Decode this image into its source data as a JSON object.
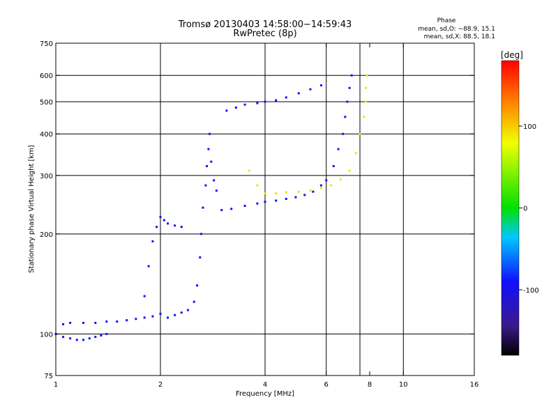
{
  "chart_data": {
    "type": "scatter",
    "title": "Tromsø 20130403 14:58:00−14:59:43",
    "subtitle": "RwPretec (8p)",
    "xlabel": "Frequency [MHz]",
    "ylabel": "Stationary phase Virtual Height [km]",
    "x_scale": "log",
    "y_scale": "log",
    "xlim": [
      1,
      16
    ],
    "ylim": [
      75,
      750
    ],
    "x_ticks": [
      1,
      2,
      4,
      6,
      8,
      10,
      16
    ],
    "x_tick_labels": [
      "1",
      "2",
      "4",
      "6",
      "8",
      "10",
      "16"
    ],
    "y_ticks": [
      75,
      100,
      200,
      300,
      400,
      500,
      600,
      750
    ],
    "y_tick_labels": [
      "75",
      "100",
      "200",
      "300",
      "400",
      "500",
      "600",
      "750"
    ],
    "x_grid": [
      2,
      4,
      6,
      7.5,
      10
    ],
    "y_grid": [
      100,
      200,
      300,
      400,
      500,
      600
    ],
    "grid": true,
    "phase_info": {
      "title": "Phase",
      "line_o": "mean, sd,O: −88.9, 15.1",
      "line_x": "mean, sd,X:  88.5, 18.1"
    },
    "colorbar": {
      "label": "[deg]",
      "range": [
        -180,
        180
      ],
      "ticks": [
        100,
        0,
        -100
      ],
      "tick_labels": [
        "100",
        "0",
        "-100"
      ]
    },
    "series": [
      {
        "name": "",
        "phase": -90,
        "points": [
          [
            1.0,
            100
          ],
          [
            1.05,
            98
          ],
          [
            1.1,
            97
          ],
          [
            1.15,
            96
          ],
          [
            1.2,
            96
          ],
          [
            1.25,
            97
          ],
          [
            1.3,
            98
          ],
          [
            1.35,
            99
          ],
          [
            1.4,
            100
          ],
          [
            1.05,
            107
          ],
          [
            1.1,
            108
          ],
          [
            1.2,
            108
          ],
          [
            1.3,
            108
          ],
          [
            1.4,
            109
          ],
          [
            1.5,
            109
          ],
          [
            1.6,
            110
          ],
          [
            1.7,
            111
          ],
          [
            1.8,
            112
          ],
          [
            1.9,
            113
          ],
          [
            2.0,
            115
          ],
          [
            2.1,
            112
          ],
          [
            2.2,
            114
          ],
          [
            2.3,
            116
          ],
          [
            2.4,
            118
          ],
          [
            2.5,
            125
          ],
          [
            2.55,
            140
          ],
          [
            2.6,
            170
          ],
          [
            2.62,
            200
          ],
          [
            2.65,
            240
          ],
          [
            2.7,
            280
          ],
          [
            2.72,
            320
          ],
          [
            2.75,
            360
          ],
          [
            2.77,
            400
          ],
          [
            2.8,
            330
          ],
          [
            2.85,
            290
          ],
          [
            2.9,
            270
          ],
          [
            1.8,
            130
          ],
          [
            1.85,
            160
          ],
          [
            1.9,
            190
          ],
          [
            1.95,
            210
          ],
          [
            2.0,
            225
          ],
          [
            2.05,
            220
          ],
          [
            2.1,
            215
          ],
          [
            2.2,
            212
          ],
          [
            2.3,
            210
          ],
          [
            3.0,
            236
          ],
          [
            3.2,
            238
          ],
          [
            3.5,
            243
          ],
          [
            3.8,
            247
          ],
          [
            4.0,
            250
          ],
          [
            4.3,
            252
          ],
          [
            4.6,
            255
          ],
          [
            4.9,
            258
          ],
          [
            5.2,
            262
          ],
          [
            5.5,
            268
          ],
          [
            5.8,
            280
          ],
          [
            6.0,
            290
          ],
          [
            6.3,
            320
          ],
          [
            6.5,
            360
          ],
          [
            6.7,
            400
          ],
          [
            6.8,
            450
          ],
          [
            6.9,
            500
          ],
          [
            7.0,
            550
          ],
          [
            7.1,
            600
          ],
          [
            3.1,
            470
          ],
          [
            3.3,
            480
          ],
          [
            3.5,
            490
          ],
          [
            3.8,
            495
          ],
          [
            4.0,
            500
          ],
          [
            4.3,
            505
          ],
          [
            4.6,
            515
          ],
          [
            5.0,
            530
          ],
          [
            5.4,
            545
          ],
          [
            5.8,
            560
          ]
        ]
      },
      {
        "name": "",
        "phase": 90,
        "points": [
          [
            3.6,
            310
          ],
          [
            3.8,
            280
          ],
          [
            4.0,
            265
          ],
          [
            4.3,
            265
          ],
          [
            4.6,
            267
          ],
          [
            5.0,
            268
          ],
          [
            5.4,
            270
          ],
          [
            5.8,
            275
          ],
          [
            6.2,
            280
          ],
          [
            6.6,
            292
          ],
          [
            7.0,
            310
          ],
          [
            7.3,
            350
          ],
          [
            7.5,
            400
          ],
          [
            7.7,
            450
          ],
          [
            7.8,
            500
          ],
          [
            7.8,
            550
          ],
          [
            7.85,
            600
          ]
        ]
      }
    ]
  }
}
